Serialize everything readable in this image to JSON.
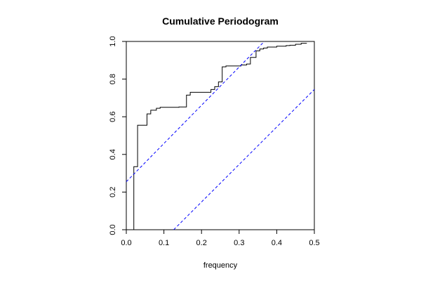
{
  "chart_data": {
    "type": "line",
    "title": "Cumulative Periodogram",
    "xlabel": "frequency",
    "ylabel": "",
    "xlim": [
      0.0,
      0.5
    ],
    "ylim": [
      0.0,
      1.0
    ],
    "x_ticks": [
      "0.0",
      "0.1",
      "0.2",
      "0.3",
      "0.4",
      "0.5"
    ],
    "y_ticks": [
      "0.0",
      "0.2",
      "0.4",
      "0.6",
      "0.8",
      "1.0"
    ],
    "grid": false,
    "legend": "none",
    "series": [
      {
        "style": "step",
        "color": "#000000",
        "x": [
          0.02,
          0.02,
          0.03,
          0.03,
          0.03,
          0.035,
          0.055,
          0.055,
          0.055,
          0.065,
          0.065,
          0.07,
          0.08,
          0.08,
          0.09,
          0.11,
          0.11,
          0.14,
          0.16,
          0.16,
          0.16,
          0.17,
          0.17,
          0.185,
          0.225,
          0.225,
          0.235,
          0.235,
          0.245,
          0.245,
          0.255,
          0.255,
          0.265,
          0.265,
          0.29,
          0.305,
          0.305,
          0.32,
          0.32,
          0.33,
          0.33,
          0.345,
          0.345,
          0.355,
          0.355,
          0.365,
          0.375,
          0.375,
          0.39,
          0.4,
          0.4,
          0.425,
          0.435,
          0.45,
          0.45,
          0.465,
          0.465,
          0.48
        ],
        "y": [
          0.0,
          0.335,
          0.335,
          0.335,
          0.555,
          0.555,
          0.555,
          0.615,
          0.615,
          0.615,
          0.635,
          0.635,
          0.635,
          0.645,
          0.65,
          0.65,
          0.65,
          0.652,
          0.652,
          0.655,
          0.715,
          0.715,
          0.73,
          0.73,
          0.73,
          0.745,
          0.745,
          0.76,
          0.76,
          0.785,
          0.785,
          0.865,
          0.865,
          0.87,
          0.87,
          0.87,
          0.875,
          0.875,
          0.88,
          0.88,
          0.915,
          0.915,
          0.95,
          0.95,
          0.96,
          0.965,
          0.965,
          0.97,
          0.97,
          0.97,
          0.975,
          0.978,
          0.98,
          0.98,
          0.985,
          0.985,
          0.99,
          0.99
        ]
      },
      {
        "style": "dashed",
        "color": "#0000ff",
        "x": [
          0.0,
          0.367
        ],
        "y": [
          0.255,
          1.0
        ]
      },
      {
        "style": "dashed",
        "color": "#0000ff",
        "x": [
          0.126,
          0.5
        ],
        "y": [
          0.0,
          0.745
        ]
      }
    ]
  }
}
